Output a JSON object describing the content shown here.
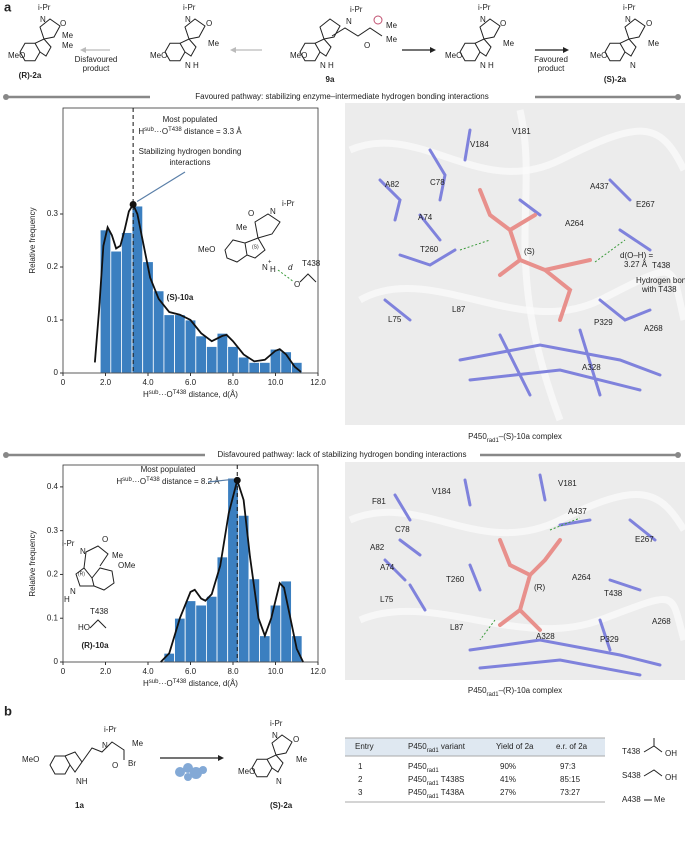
{
  "panel_a": "a",
  "panel_b": "b",
  "scheme_a": {
    "compounds": [
      "(R)-2a",
      "9a",
      "(S)-2a"
    ],
    "disfavoured": [
      "Disfavoured",
      "product"
    ],
    "favoured": [
      "Favoured",
      "product"
    ],
    "atoms": {
      "ipr": "i-Pr",
      "me": "Me",
      "meo": "MeO",
      "n": "N",
      "o": "O",
      "h": "H"
    }
  },
  "banner_favoured": "Favoured pathway: stabilizing enzyme–intermediate hydrogen bonding interactions",
  "banner_disfavoured": "Disfavoured pathway: lack of stabilizing hydrogen bonding interactions",
  "chart_data": [
    {
      "type": "histogram",
      "ylabel": "Relative frequency",
      "xlabel": [
        "H",
        "sub",
        "···O",
        "T438",
        " distance, d(Å)"
      ],
      "color": "#3b7fc0",
      "bins": [
        1.75,
        2.25,
        2.75,
        3.25,
        3.75,
        4.25,
        4.75,
        5.25,
        5.75,
        6.25,
        6.75,
        7.25,
        7.75,
        8.25,
        8.75,
        9.25,
        9.75,
        10.25,
        10.75,
        11.25
      ],
      "values": [
        0.27,
        0.23,
        0.265,
        0.315,
        0.21,
        0.155,
        0.11,
        0.11,
        0.1,
        0.07,
        0.05,
        0.075,
        0.05,
        0.03,
        0.02,
        0.02,
        0.045,
        0.04,
        0.02
      ],
      "curve": {
        "x": [
          1.5,
          1.7,
          1.9,
          2.1,
          2.3,
          2.5,
          2.7,
          2.9,
          3.1,
          3.3,
          3.5,
          3.8,
          4.1,
          4.5,
          5,
          5.5,
          6,
          6.5,
          7,
          7.5,
          7.7,
          8,
          8.5,
          9,
          9.5,
          10,
          10.2,
          10.5,
          10.9,
          11.2
        ],
        "y": [
          0.02,
          0.12,
          0.24,
          0.275,
          0.26,
          0.235,
          0.24,
          0.27,
          0.305,
          0.318,
          0.3,
          0.24,
          0.18,
          0.14,
          0.115,
          0.11,
          0.1,
          0.075,
          0.06,
          0.07,
          0.072,
          0.06,
          0.035,
          0.022,
          0.025,
          0.042,
          0.045,
          0.035,
          0.012,
          0.002
        ]
      },
      "peak": {
        "x": 3.3,
        "y": 0.318
      },
      "annotation_title": "Most populated",
      "annotation": [
        "H",
        "sub",
        "···O",
        "T438",
        " distance = 3.3 Å"
      ],
      "annotation_green": [
        "Stabilizing hydrogen bonding",
        "interactions"
      ],
      "xlim": [
        0,
        12
      ],
      "ylim": [
        0,
        0.5
      ],
      "xticks": [
        0,
        {
          "value": 2,
          "label": "2.0"
        },
        {
          "value": 4,
          "label": "4.0"
        },
        {
          "value": 6,
          "label": "6.0"
        },
        {
          "value": 8,
          "label": "8.0"
        },
        {
          "value": 10,
          "label": "10.0"
        },
        {
          "value": 12,
          "label": "12.0"
        }
      ],
      "yticks": [
        0,
        0.1,
        0.2,
        0.3
      ]
    },
    {
      "type": "histogram",
      "ylabel": "Relative frequency",
      "xlabel": [
        "H",
        "sub",
        "···O",
        "T438",
        " distance, d(Å)"
      ],
      "color": "#3b7fc0",
      "bins": [
        4.75,
        5.25,
        5.75,
        6.25,
        6.75,
        7.25,
        7.75,
        8.25,
        8.75,
        9.25,
        9.75,
        10.25,
        10.75,
        11.25
      ],
      "values": [
        0.02,
        0.1,
        0.14,
        0.13,
        0.15,
        0.24,
        0.42,
        0.335,
        0.19,
        0.06,
        0.13,
        0.185,
        0.06
      ],
      "curve": {
        "x": [
          4.6,
          5,
          5.5,
          6,
          6.2,
          6.5,
          6.7,
          7,
          7.4,
          7.8,
          8.2,
          8.5,
          8.8,
          9.2,
          9.5,
          9.8,
          10.2,
          10.4,
          10.7,
          11,
          11.3
        ],
        "y": [
          0,
          0.02,
          0.1,
          0.16,
          0.165,
          0.145,
          0.14,
          0.155,
          0.22,
          0.34,
          0.415,
          0.37,
          0.24,
          0.1,
          0.06,
          0.1,
          0.18,
          0.17,
          0.1,
          0.03,
          0
        ]
      },
      "peak": {
        "x": 8.2,
        "y": 0.415
      },
      "annotation_title": "Most populated",
      "annotation": [
        "H",
        "sub",
        "···O",
        "T438",
        " distance = 8.2 Å"
      ],
      "xlim": [
        0,
        12
      ],
      "ylim": [
        0,
        0.45
      ],
      "xticks": [
        0,
        {
          "value": 2,
          "label": "2.0"
        },
        {
          "value": 4,
          "label": "4.0"
        },
        {
          "value": 6,
          "label": "6.0"
        },
        {
          "value": 8,
          "label": "8.0"
        },
        {
          "value": 10,
          "label": "10.0"
        },
        {
          "value": 12,
          "label": "12.0"
        }
      ],
      "yticks": [
        0,
        0.1,
        0.2,
        0.3,
        0.4
      ]
    }
  ],
  "inset_1": {
    "name": "(S)-10a",
    "stereo": "(S)",
    "residue": "T438",
    "d": "d",
    "ho": "O",
    "nh": "N",
    "plus": "+",
    "h": "H"
  },
  "inset_2": {
    "name": "(R)-10a",
    "stereo": "(R)",
    "residue": "T438",
    "ho": "HO",
    "ome": "OMe"
  },
  "structure_1": {
    "residues": [
      "V184",
      "V181",
      "A82",
      "C78",
      "A437",
      "E267",
      "A74",
      "A264",
      "T260",
      "T438",
      "L75",
      "L87",
      "P329",
      "A268",
      "A328"
    ],
    "stereo": "(S)",
    "distance": [
      "d(O–H) =",
      "3.27 Å"
    ],
    "hbond": [
      "Hydrogen bond",
      "with T438"
    ],
    "caption": [
      "P450",
      "rad1",
      "–(S)-10a complex"
    ]
  },
  "structure_2": {
    "residues": [
      "F81",
      "V184",
      "V181",
      "A437",
      "C78",
      "E267",
      "A82",
      "A74",
      "T260",
      "A264",
      "T438",
      "L75",
      "L87",
      "A328",
      "P329",
      "A268"
    ],
    "stereo": "(R)",
    "caption": [
      "P450",
      "rad1",
      "–(R)-10a complex"
    ]
  },
  "scheme_b": {
    "compounds": [
      "1a",
      "(S)-2a"
    ],
    "br": "Br",
    "nh": "NH"
  },
  "table": {
    "header": [
      "Entry",
      [
        "P450",
        "rad1",
        " variant"
      ],
      "Yield of 2a",
      "e.r. of 2a"
    ],
    "rows": [
      {
        "entry": "1",
        "variant": [
          "P450",
          "rad1"
        ],
        "yield": "90%",
        "er": "97:3"
      },
      {
        "entry": "2",
        "variant": [
          "P450",
          "rad1",
          " T438S"
        ],
        "yield": "41%",
        "er": "85:15"
      },
      {
        "entry": "3",
        "variant": [
          "P450",
          "rad1",
          " T438A"
        ],
        "yield": "27%",
        "er": "73:27"
      }
    ]
  },
  "variants": {
    "t438": "T438",
    "s438": "S438",
    "a438": "A438",
    "me": "Me",
    "oh": "OH"
  }
}
